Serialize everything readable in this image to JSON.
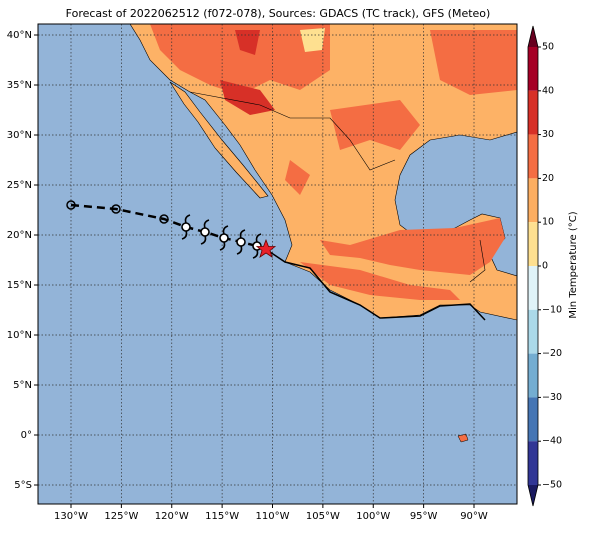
{
  "header": {
    "title": "Forecast of 2022062512 (f072-078), Sources: GDACS (TC track), GFS (Meteo)"
  },
  "map": {
    "lat_labels": [
      "40°N",
      "35°N",
      "30°N",
      "25°N",
      "20°N",
      "15°N",
      "10°N",
      "5°N",
      "0°",
      "5°S"
    ],
    "lon_labels": [
      "130°W",
      "125°W",
      "120°W",
      "115°W",
      "110°W",
      "105°W",
      "100°W",
      "95°W",
      "90°W"
    ]
  },
  "colorbar": {
    "label": "Min Temperature (°C)",
    "ticks": [
      {
        "value": 50,
        "label": "50"
      },
      {
        "value": 40,
        "label": "40"
      },
      {
        "value": 30,
        "label": "30"
      },
      {
        "value": 20,
        "label": "20"
      },
      {
        "value": 10,
        "label": "10"
      },
      {
        "value": 0,
        "label": "0"
      },
      {
        "value": -10,
        "label": "−10"
      },
      {
        "value": -20,
        "label": "−20"
      },
      {
        "value": -30,
        "label": "−30"
      },
      {
        "value": -40,
        "label": "−40"
      },
      {
        "value": -50,
        "label": "−50"
      }
    ]
  }
}
